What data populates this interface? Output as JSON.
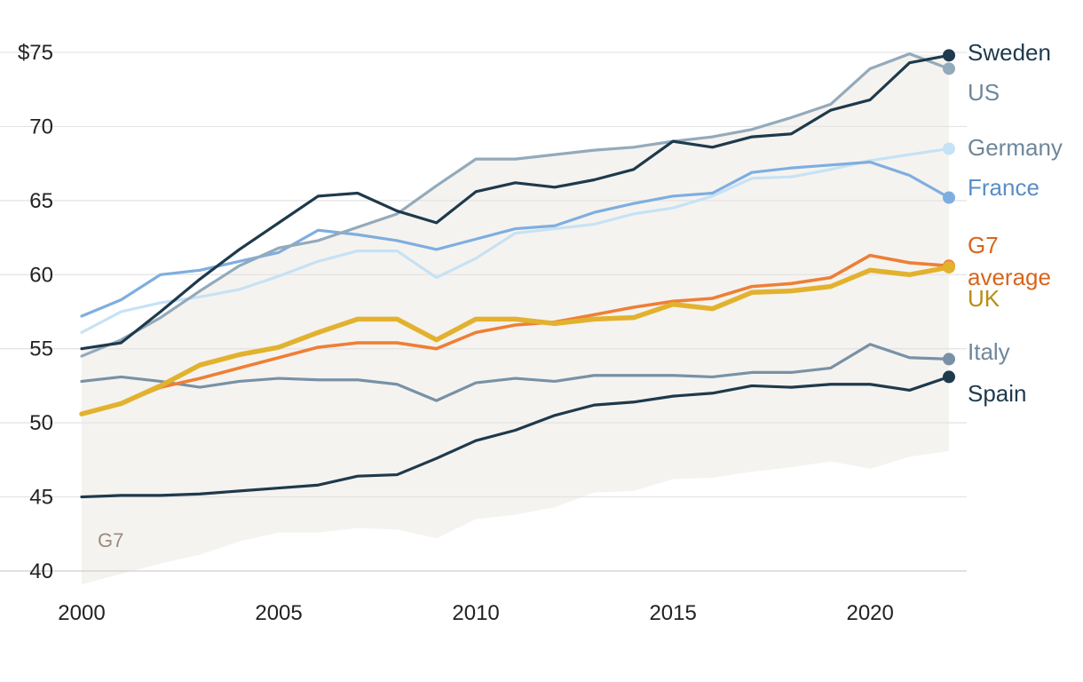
{
  "chart_data": {
    "type": "line",
    "title": "",
    "xlabel": "",
    "ylabel": "",
    "ylim": [
      40,
      75
    ],
    "xlim": [
      2000,
      2022
    ],
    "y_ticks": [
      {
        "value": 75,
        "label": "$75"
      },
      {
        "value": 70,
        "label": "70"
      },
      {
        "value": 65,
        "label": "65"
      },
      {
        "value": 60,
        "label": "60"
      },
      {
        "value": 55,
        "label": "55"
      },
      {
        "value": 50,
        "label": "50"
      },
      {
        "value": 45,
        "label": "45"
      },
      {
        "value": 40,
        "label": "40"
      }
    ],
    "x_ticks": [
      {
        "value": 2000,
        "label": "2000"
      },
      {
        "value": 2005,
        "label": "2005"
      },
      {
        "value": 2010,
        "label": "2010"
      },
      {
        "value": 2015,
        "label": "2015"
      },
      {
        "value": 2020,
        "label": "2020"
      }
    ],
    "grid": true,
    "x": [
      2000,
      2001,
      2002,
      2003,
      2004,
      2005,
      2006,
      2007,
      2008,
      2009,
      2010,
      2011,
      2012,
      2013,
      2014,
      2015,
      2016,
      2017,
      2018,
      2019,
      2020,
      2021,
      2022
    ],
    "band": {
      "name": "G7",
      "color": "#f5f3f0",
      "label_color": "#9a8a80",
      "lower": [
        39.1,
        39.8,
        40.5,
        41.1,
        42.0,
        42.6,
        42.6,
        42.9,
        42.8,
        42.2,
        43.5,
        43.8,
        44.3,
        45.3,
        45.4,
        46.2,
        46.3,
        46.7,
        47.0,
        47.4,
        46.9,
        47.7,
        48.1
      ],
      "upper": [
        55.0,
        55.6,
        57.1,
        58.9,
        60.6,
        61.8,
        62.3,
        63.2,
        64.1,
        66.0,
        67.8,
        67.8,
        68.1,
        68.4,
        68.6,
        69.0,
        69.3,
        69.8,
        70.6,
        71.5,
        73.9,
        74.9,
        74.8
      ]
    },
    "series": [
      {
        "name": "Sweden",
        "color": "#1e3a4c",
        "width": 3.2,
        "values": [
          55.0,
          55.4,
          57.5,
          59.7,
          61.7,
          63.5,
          65.3,
          65.5,
          64.3,
          63.5,
          65.6,
          66.2,
          65.9,
          66.4,
          67.1,
          69.0,
          68.6,
          69.3,
          69.5,
          71.1,
          71.8,
          74.3,
          74.8
        ]
      },
      {
        "name": "US",
        "color": "#93aabb",
        "width": 3.2,
        "values": [
          54.5,
          55.6,
          57.1,
          58.9,
          60.6,
          61.8,
          62.3,
          63.2,
          64.1,
          66.0,
          67.8,
          67.8,
          68.1,
          68.4,
          68.6,
          69.0,
          69.3,
          69.8,
          70.6,
          71.5,
          73.9,
          74.9,
          73.9
        ]
      },
      {
        "name": "Germany",
        "color": "#c6e2f5",
        "width": 3.2,
        "values": [
          56.1,
          57.5,
          58.1,
          58.5,
          59.0,
          59.9,
          60.9,
          61.6,
          61.6,
          59.8,
          61.1,
          62.8,
          63.1,
          63.4,
          64.1,
          64.5,
          65.3,
          66.5,
          66.6,
          67.1,
          67.7,
          68.1,
          68.5
        ]
      },
      {
        "name": "France",
        "color": "#7eaee0",
        "width": 3.2,
        "values": [
          57.2,
          58.3,
          60.0,
          60.3,
          60.9,
          61.5,
          63.0,
          62.7,
          62.3,
          61.7,
          62.4,
          63.1,
          63.3,
          64.2,
          64.8,
          65.3,
          65.5,
          66.9,
          67.2,
          67.4,
          67.6,
          66.7,
          65.2
        ]
      },
      {
        "name": "G7 average",
        "color": "#ee7f35",
        "width": 3.6,
        "values": [
          50.6,
          51.3,
          52.4,
          53.0,
          53.7,
          54.4,
          55.1,
          55.4,
          55.4,
          55.0,
          56.1,
          56.6,
          56.8,
          57.3,
          57.8,
          58.2,
          58.4,
          59.2,
          59.4,
          59.8,
          61.3,
          60.8,
          60.6
        ]
      },
      {
        "name": "UK",
        "color": "#e2b22f",
        "width": 5.5,
        "values": [
          50.6,
          51.3,
          52.5,
          53.9,
          54.6,
          55.1,
          56.1,
          57.0,
          57.0,
          55.6,
          57.0,
          57.0,
          56.7,
          57.0,
          57.1,
          58.0,
          57.7,
          58.8,
          58.9,
          59.2,
          60.3,
          60.0,
          60.5
        ]
      },
      {
        "name": "Italy",
        "color": "#7891a6",
        "width": 3.2,
        "values": [
          52.8,
          53.1,
          52.8,
          52.4,
          52.8,
          53.0,
          52.9,
          52.9,
          52.6,
          51.5,
          52.7,
          53.0,
          52.8,
          53.2,
          53.2,
          53.2,
          53.1,
          53.4,
          53.4,
          53.7,
          55.3,
          54.4,
          54.3
        ]
      },
      {
        "name": "Spain",
        "color": "#1e3a4c",
        "width": 3.2,
        "values": [
          45.0,
          45.1,
          45.1,
          45.2,
          45.4,
          45.6,
          45.8,
          46.4,
          46.5,
          47.6,
          48.8,
          49.5,
          50.5,
          51.2,
          51.4,
          51.8,
          52.0,
          52.5,
          52.4,
          52.6,
          52.6,
          52.2,
          53.1
        ]
      }
    ],
    "end_labels": [
      {
        "series": "Sweden",
        "lines": [
          "Sweden"
        ],
        "color": "#1e3a4c",
        "y": 75.0
      },
      {
        "series": "US",
        "lines": [
          "US"
        ],
        "color": "#6f879a",
        "y": 72.3
      },
      {
        "series": "Germany",
        "lines": [
          "Germany"
        ],
        "color": "#6f879a",
        "y": 68.6
      },
      {
        "series": "France",
        "lines": [
          "France"
        ],
        "color": "#5a8ec4",
        "y": 65.9
      },
      {
        "series": "G7 average",
        "lines": [
          "G7",
          "average"
        ],
        "color": "#d8651c",
        "y": 62.0
      },
      {
        "series": "UK",
        "lines": [
          "UK"
        ],
        "color": "#b88e14",
        "y": 58.4
      },
      {
        "series": "Italy",
        "lines": [
          "Italy"
        ],
        "color": "#6f879a",
        "y": 54.8
      },
      {
        "series": "Spain",
        "lines": [
          "Spain"
        ],
        "color": "#1e3a4c",
        "y": 52.0
      }
    ]
  }
}
